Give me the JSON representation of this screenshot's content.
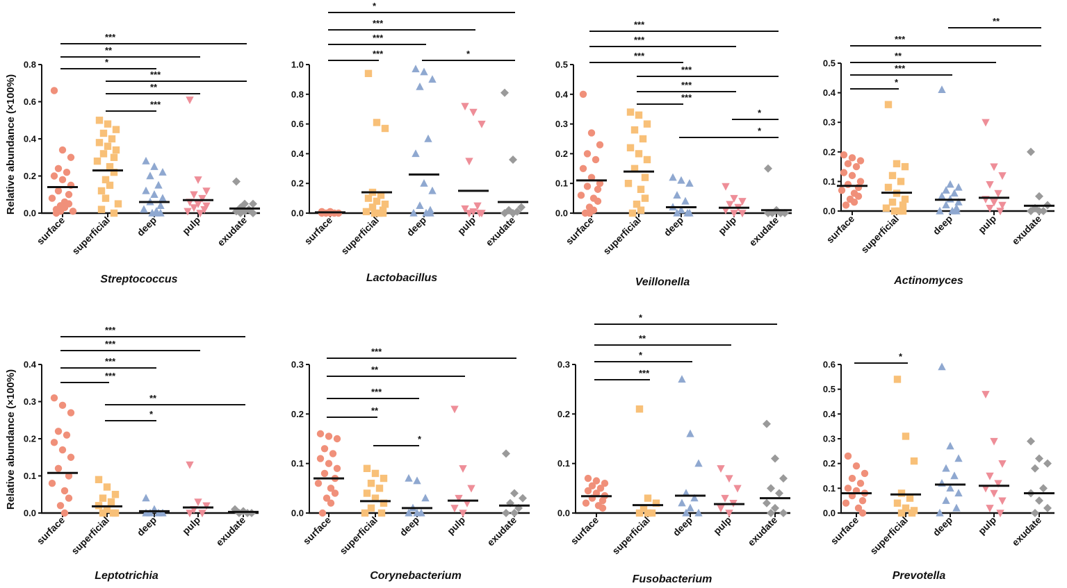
{
  "figure": {
    "ylabel": "Relative abundance (×100%)"
  },
  "colors": {
    "surface": "#f0907a",
    "superficial": "#f8c078",
    "deep": "#8fa8d0",
    "pulp": "#ee8e98",
    "exudate": "#9a9a9a"
  },
  "chart_data": [
    {
      "type": "scatter",
      "title": "Streptococcus",
      "categories": [
        "surface",
        "superficial",
        "deep",
        "pulp",
        "exudate"
      ],
      "ylim": [
        0,
        0.8
      ],
      "yticks": [
        "0.0",
        "0.2",
        "0.4",
        "0.6",
        "0.8"
      ],
      "means": [
        0.14,
        0.23,
        0.06,
        0.07,
        0.025
      ],
      "points": [
        [
          0.66,
          0.34,
          0.3,
          0.24,
          0.22,
          0.2,
          0.18,
          0.15,
          0.12,
          0.1,
          0.08,
          0.06,
          0.05,
          0.04,
          0.03,
          0.02,
          0.01,
          0.01,
          0.0
        ],
        [
          0.5,
          0.48,
          0.45,
          0.43,
          0.4,
          0.38,
          0.36,
          0.34,
          0.32,
          0.3,
          0.28,
          0.25,
          0.22,
          0.18,
          0.15,
          0.12,
          0.08,
          0.05,
          0.02,
          0.0
        ],
        [
          0.28,
          0.25,
          0.22,
          0.2,
          0.15,
          0.12,
          0.1,
          0.08,
          0.06,
          0.04,
          0.02,
          0.01,
          0.0,
          0.0,
          0.0
        ],
        [
          0.61,
          0.18,
          0.12,
          0.1,
          0.08,
          0.06,
          0.05,
          0.04,
          0.03,
          0.02,
          0.01,
          0.0
        ],
        [
          0.17,
          0.05,
          0.05,
          0.03,
          0.02,
          0.01,
          0.01,
          0.0,
          0.0
        ]
      ],
      "significance": [
        {
          "from": 0,
          "to": 4,
          "label": "***"
        },
        {
          "from": 0,
          "to": 3,
          "label": "**"
        },
        {
          "from": 0,
          "to": 2,
          "label": "*"
        },
        {
          "from": 1,
          "to": 4,
          "label": "***"
        },
        {
          "from": 1,
          "to": 3,
          "label": "**"
        },
        {
          "from": 1,
          "to": 2,
          "label": "***"
        }
      ]
    },
    {
      "type": "scatter",
      "title": "Lactobacillus",
      "categories": [
        "surface",
        "superficial",
        "deep",
        "pulp",
        "exudate"
      ],
      "ylim": [
        0,
        1.0
      ],
      "yticks": [
        "0.0",
        "0.2",
        "0.4",
        "0.6",
        "0.8",
        "1.0"
      ],
      "means": [
        0.005,
        0.14,
        0.26,
        0.15,
        0.075
      ],
      "points": [
        [
          0.01,
          0.01,
          0.0,
          0.0,
          0.0,
          0.0,
          0.0
        ],
        [
          0.94,
          0.61,
          0.57,
          0.14,
          0.12,
          0.1,
          0.08,
          0.06,
          0.04,
          0.02,
          0.01,
          0.0,
          0.0,
          0.0
        ],
        [
          0.97,
          0.95,
          0.9,
          0.85,
          0.5,
          0.4,
          0.2,
          0.15,
          0.05,
          0.02,
          0.0,
          0.0,
          0.0
        ],
        [
          0.72,
          0.68,
          0.6,
          0.35,
          0.05,
          0.03,
          0.01,
          0.0,
          0.0,
          0.0
        ],
        [
          0.81,
          0.36,
          0.04,
          0.02,
          0.01,
          0.0,
          0.0
        ]
      ],
      "significance": [
        {
          "from": 0,
          "to": 4,
          "label": "*"
        },
        {
          "from": 0,
          "to": 3,
          "label": "***"
        },
        {
          "from": 0,
          "to": 2,
          "label": "***"
        },
        {
          "from": 0,
          "to": 1,
          "label": "***"
        },
        {
          "from": 2,
          "to": 4,
          "label": "*"
        }
      ]
    },
    {
      "type": "scatter",
      "title": "Veillonella",
      "categories": [
        "surface",
        "superficial",
        "deep",
        "pulp",
        "exudate"
      ],
      "ylim": [
        0,
        0.5
      ],
      "yticks": [
        "0.0",
        "0.1",
        "0.2",
        "0.3",
        "0.4",
        "0.5"
      ],
      "means": [
        0.11,
        0.14,
        0.02,
        0.018,
        0.01
      ],
      "points": [
        [
          0.4,
          0.27,
          0.23,
          0.2,
          0.18,
          0.15,
          0.12,
          0.1,
          0.09,
          0.08,
          0.06,
          0.05,
          0.04,
          0.02,
          0.01,
          0.0,
          0.0
        ],
        [
          0.34,
          0.33,
          0.3,
          0.28,
          0.25,
          0.22,
          0.2,
          0.18,
          0.15,
          0.12,
          0.1,
          0.08,
          0.05,
          0.03,
          0.01,
          0.0
        ],
        [
          0.12,
          0.11,
          0.1,
          0.06,
          0.04,
          0.02,
          0.01,
          0.0,
          0.0,
          0.0
        ],
        [
          0.09,
          0.05,
          0.04,
          0.03,
          0.02,
          0.01,
          0.0,
          0.0
        ],
        [
          0.15,
          0.01,
          0.0,
          0.0,
          0.0,
          0.0
        ]
      ],
      "significance": [
        {
          "from": 0,
          "to": 4,
          "label": "***"
        },
        {
          "from": 0,
          "to": 3,
          "label": "***"
        },
        {
          "from": 0,
          "to": 2,
          "label": "***"
        },
        {
          "from": 1,
          "to": 4,
          "label": "***"
        },
        {
          "from": 1,
          "to": 3,
          "label": "***"
        },
        {
          "from": 1,
          "to": 2,
          "label": "***"
        },
        {
          "from": 3,
          "to": 4,
          "label": "*"
        },
        {
          "from": 2,
          "to": 4,
          "label": "*"
        }
      ]
    },
    {
      "type": "scatter",
      "title": "Actinomyces",
      "categories": [
        "surface",
        "superficial",
        "deep",
        "pulp",
        "exudate"
      ],
      "ylim": [
        0,
        0.5
      ],
      "yticks": [
        "0.0",
        "0.1",
        "0.2",
        "0.3",
        "0.4",
        "0.5"
      ],
      "means": [
        0.085,
        0.062,
        0.038,
        0.045,
        0.018
      ],
      "points": [
        [
          0.19,
          0.18,
          0.17,
          0.16,
          0.15,
          0.13,
          0.12,
          0.1,
          0.09,
          0.08,
          0.07,
          0.06,
          0.05,
          0.04,
          0.03,
          0.02
        ],
        [
          0.36,
          0.16,
          0.15,
          0.12,
          0.1,
          0.08,
          0.06,
          0.04,
          0.03,
          0.02,
          0.01,
          0.0,
          0.0,
          0.0
        ],
        [
          0.41,
          0.09,
          0.08,
          0.07,
          0.06,
          0.05,
          0.04,
          0.03,
          0.02,
          0.01,
          0.0,
          0.0,
          0.0
        ],
        [
          0.3,
          0.15,
          0.12,
          0.09,
          0.06,
          0.04,
          0.03,
          0.02,
          0.01,
          0.0
        ],
        [
          0.2,
          0.05,
          0.02,
          0.01,
          0.0,
          0.0,
          0.0
        ]
      ],
      "significance": [
        {
          "from": 2,
          "to": 4,
          "label": "**"
        },
        {
          "from": 0,
          "to": 4,
          "label": "***"
        },
        {
          "from": 0,
          "to": 3,
          "label": "**"
        },
        {
          "from": 0,
          "to": 2,
          "label": "***"
        },
        {
          "from": 0,
          "to": 1,
          "label": "*"
        }
      ]
    },
    {
      "type": "scatter",
      "title": "Leptotrichia",
      "categories": [
        "surface",
        "superficial",
        "deep",
        "pulp",
        "exudate"
      ],
      "ylim": [
        0,
        0.4
      ],
      "yticks": [
        "0.0",
        "0.1",
        "0.2",
        "0.3",
        "0.4"
      ],
      "means": [
        0.108,
        0.018,
        0.005,
        0.015,
        0.003
      ],
      "points": [
        [
          0.31,
          0.29,
          0.27,
          0.22,
          0.21,
          0.19,
          0.17,
          0.15,
          0.12,
          0.1,
          0.08,
          0.06,
          0.04,
          0.02,
          0.0
        ],
        [
          0.09,
          0.07,
          0.05,
          0.04,
          0.03,
          0.02,
          0.01,
          0.0,
          0.0,
          0.0
        ],
        [
          0.04,
          0.01,
          0.0,
          0.0,
          0.0,
          0.0
        ],
        [
          0.13,
          0.03,
          0.02,
          0.01,
          0.0,
          0.0
        ],
        [
          0.01,
          0.005,
          0.0,
          0.0,
          0.0
        ]
      ],
      "significance": [
        {
          "from": 0,
          "to": 4,
          "label": "***"
        },
        {
          "from": 0,
          "to": 3,
          "label": "***"
        },
        {
          "from": 0,
          "to": 2,
          "label": "***"
        },
        {
          "from": 0,
          "to": 1,
          "label": "***"
        },
        {
          "from": 1,
          "to": 4,
          "label": "**"
        },
        {
          "from": 1,
          "to": 2,
          "label": "*"
        }
      ]
    },
    {
      "type": "scatter",
      "title": "Corynebacterium",
      "categories": [
        "surface",
        "superficial",
        "deep",
        "pulp",
        "exudate"
      ],
      "ylim": [
        0,
        0.3
      ],
      "yticks": [
        "0.0",
        "0.1",
        "0.2",
        "0.3"
      ],
      "means": [
        0.07,
        0.024,
        0.01,
        0.025,
        0.015
      ],
      "points": [
        [
          0.16,
          0.155,
          0.15,
          0.13,
          0.12,
          0.11,
          0.1,
          0.09,
          0.08,
          0.07,
          0.06,
          0.05,
          0.04,
          0.03,
          0.02,
          0.0
        ],
        [
          0.09,
          0.08,
          0.07,
          0.06,
          0.05,
          0.04,
          0.03,
          0.02,
          0.01,
          0.0,
          0.0
        ],
        [
          0.07,
          0.065,
          0.03,
          0.01,
          0.0,
          0.0,
          0.0
        ],
        [
          0.21,
          0.09,
          0.05,
          0.03,
          0.02,
          0.01,
          0.0
        ],
        [
          0.12,
          0.04,
          0.03,
          0.02,
          0.01,
          0.0,
          0.0
        ]
      ],
      "significance": [
        {
          "from": 0,
          "to": 4,
          "label": "***"
        },
        {
          "from": 0,
          "to": 3,
          "label": "**"
        },
        {
          "from": 0,
          "to": 2,
          "label": "***"
        },
        {
          "from": 0,
          "to": 1,
          "label": "**"
        },
        {
          "from": 1,
          "to": 2,
          "label": "*"
        }
      ]
    },
    {
      "type": "scatter",
      "title": "Fusobacterium",
      "categories": [
        "surface",
        "superficial",
        "deep",
        "pulp",
        "exudate"
      ],
      "ylim": [
        0,
        0.3
      ],
      "yticks": [
        "0.0",
        "0.1",
        "0.2",
        "0.3"
      ],
      "means": [
        0.034,
        0.016,
        0.035,
        0.018,
        0.03
      ],
      "points": [
        [
          0.07,
          0.065,
          0.06,
          0.055,
          0.05,
          0.045,
          0.04,
          0.035,
          0.03,
          0.025,
          0.02,
          0.015,
          0.01
        ],
        [
          0.21,
          0.03,
          0.02,
          0.01,
          0.0,
          0.0,
          0.0
        ],
        [
          0.27,
          0.16,
          0.1,
          0.04,
          0.03,
          0.02,
          0.01,
          0.0,
          0.0
        ],
        [
          0.09,
          0.07,
          0.05,
          0.03,
          0.02,
          0.01,
          0.0
        ],
        [
          0.18,
          0.11,
          0.07,
          0.05,
          0.04,
          0.02,
          0.01,
          0.0,
          0.0
        ]
      ],
      "significance": [
        {
          "from": 0,
          "to": 4,
          "label": "*"
        },
        {
          "from": 0,
          "to": 3,
          "label": "**"
        },
        {
          "from": 0,
          "to": 2,
          "label": "*"
        },
        {
          "from": 0,
          "to": 1,
          "label": "***"
        }
      ]
    },
    {
      "type": "scatter",
      "title": "Prevotella",
      "categories": [
        "surface",
        "superficial",
        "deep",
        "pulp",
        "exudate"
      ],
      "ylim": [
        0,
        0.6
      ],
      "yticks": [
        "0.0",
        "0.1",
        "0.2",
        "0.3",
        "0.4",
        "0.5",
        "0.6"
      ],
      "means": [
        0.08,
        0.075,
        0.115,
        0.11,
        0.08
      ],
      "points": [
        [
          0.23,
          0.19,
          0.16,
          0.14,
          0.12,
          0.1,
          0.09,
          0.08,
          0.07,
          0.05,
          0.04,
          0.02,
          0.0
        ],
        [
          0.54,
          0.31,
          0.21,
          0.08,
          0.06,
          0.04,
          0.02,
          0.01,
          0.0,
          0.0
        ],
        [
          0.59,
          0.27,
          0.22,
          0.18,
          0.15,
          0.12,
          0.1,
          0.08,
          0.05,
          0.02,
          0.0
        ],
        [
          0.48,
          0.29,
          0.2,
          0.15,
          0.12,
          0.1,
          0.08,
          0.05,
          0.02,
          0.0
        ],
        [
          0.29,
          0.22,
          0.2,
          0.18,
          0.1,
          0.08,
          0.05,
          0.02,
          0.0
        ]
      ],
      "significance": [
        {
          "from": 0,
          "to": 1,
          "label": "*"
        }
      ]
    }
  ]
}
